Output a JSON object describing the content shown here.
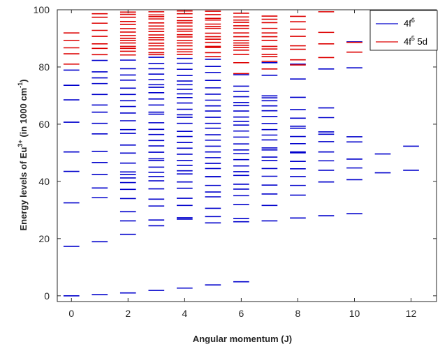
{
  "chart_data": {
    "type": "scatter",
    "xlabel": "Angular momentum (J)",
    "ylabel": {
      "prefix": "Energy levels of Eu",
      "sup1": "3+",
      "middle": " (in 1000 cm",
      "sup2": "-1",
      "suffix": ")"
    },
    "xlim": [
      -0.5,
      12.9
    ],
    "ylim": [
      -2,
      100
    ],
    "xticks": [
      0,
      2,
      4,
      6,
      8,
      10,
      12
    ],
    "yticks": [
      0,
      20,
      40,
      60,
      80,
      100
    ],
    "xtick_labels": [
      "0",
      "2",
      "4",
      "6",
      "8",
      "10",
      "12"
    ],
    "ytick_labels": [
      "0",
      "20",
      "40",
      "60",
      "80",
      "100"
    ],
    "grid": false,
    "legend": {
      "placement": "top-right",
      "entries": [
        {
          "base": "4f",
          "sup": "6",
          "tail": "",
          "color": "#0000cc"
        },
        {
          "base": "4f",
          "sup": "5",
          "tail": " 5d",
          "color": "#dd0000"
        }
      ]
    },
    "series": [
      {
        "name": "4f 6",
        "color": "#0000cc",
        "points": {
          "0": [
            0,
            17.3,
            32.5,
            43.5,
            50.3,
            60.7,
            68.5,
            73.6,
            78.9
          ],
          "1": [
            0.4,
            18.9,
            34.3,
            37.7,
            42.4,
            46.6,
            50.5,
            56.6,
            60.3,
            64.2,
            66.7,
            70.4,
            74.2,
            76.2,
            78.3,
            82.3
          ],
          "2": [
            1.0,
            21.5,
            26.2,
            29.4,
            34.0,
            37.2,
            39.6,
            41.2,
            42.4,
            43.3,
            46.4,
            49.9,
            52.7,
            56.8,
            58.1,
            61.2,
            63.9,
            66.2,
            68.2,
            70.4,
            72.6,
            75.4,
            77.2,
            79.4,
            82.4
          ],
          "3": [
            1.9,
            24.5,
            26.5,
            31.4,
            33.8,
            37.4,
            40.2,
            41.7,
            43.2,
            45.0,
            47.3,
            47.9,
            50.2,
            52.4,
            54.3,
            56.4,
            58.2,
            60.5,
            63.5,
            64.2,
            66.7,
            68.8,
            71.0,
            72.9,
            73.8,
            75.6,
            77.5,
            79.4,
            81.2,
            83.4
          ],
          "4": [
            2.7,
            26.8,
            27.3,
            31.6,
            34.1,
            37.6,
            39.8,
            42.6,
            43.7,
            45.6,
            47.3,
            49.5,
            51.6,
            53.6,
            55.7,
            57.5,
            60.3,
            62.4,
            63.3,
            65.2,
            67.4,
            69.3,
            70.6,
            72.2,
            73.8,
            75.1,
            77.0,
            79.2,
            81.3,
            83.0
          ],
          "5": [
            3.8,
            25.5,
            27.7,
            30.6,
            34.6,
            36.3,
            38.6,
            41.6,
            41.7,
            44.5,
            46.3,
            48.3,
            50.3,
            52.3,
            54.4,
            56.3,
            58.6,
            60.3,
            62.4,
            64.6,
            66.4,
            68.4,
            70.5,
            72.7,
            75.3,
            78.1,
            80.2,
            82.7
          ],
          "6": [
            4.9,
            25.9,
            27.0,
            31.9,
            35.0,
            37.3,
            39.0,
            42.1,
            43.4,
            45.4,
            47.6,
            49.7,
            51.0,
            53.1,
            55.5,
            57.6,
            59.7,
            61.0,
            62.5,
            64.6,
            66.5,
            67.6,
            69.6,
            71.5,
            73.3,
            77.3
          ],
          "7": [
            26.2,
            31.6,
            35.6,
            38.7,
            41.8,
            44.5,
            47.3,
            48.5,
            51.0,
            51.7,
            54.5,
            56.2,
            58.1,
            60.2,
            62.7,
            64.7,
            66.4,
            68.2,
            69.2,
            69.9,
            77.1,
            81.5
          ],
          "8": [
            27.2,
            35.2,
            38.6,
            41.7,
            44.4,
            47.0,
            50.0,
            50.3,
            53.2,
            55.7,
            58.6,
            59.3,
            62.1,
            65.1,
            69.4,
            75.8,
            81.0
          ],
          "9": [
            28.0,
            39.8,
            43.9,
            47.2,
            50.3,
            53.9,
            56.5,
            57.3,
            62.3,
            65.7,
            79.3
          ],
          "10": [
            28.7,
            40.6,
            44.7,
            47.8,
            53.8,
            55.6,
            79.7,
            88.8
          ],
          "11": [
            43.0,
            49.6
          ],
          "12": [
            43.9,
            52.3
          ]
        }
      },
      {
        "name": "4f 5 5d",
        "color": "#dd0000",
        "points": {
          "0": [
            81.0,
            84.6,
            86.7,
            89.2,
            91.9
          ],
          "1": [
            84.3,
            86.5,
            88.1,
            90.7,
            92.8,
            95.3,
            97.4,
            98.6
          ],
          "2": [
            84.2,
            85.5,
            86.5,
            87.2,
            88.4,
            89.3,
            90.0,
            91.0,
            92.2,
            93.4,
            94.9,
            95.9,
            97.4,
            98.4,
            99.2
          ],
          "3": [
            84.3,
            85.0,
            86.3,
            87.4,
            88.3,
            89.5,
            90.3,
            91.2,
            92.4,
            93.3,
            94.3,
            95.4,
            96.8,
            97.6,
            98.2,
            99.3
          ],
          "4": [
            84.4,
            85.3,
            86.2,
            87.4,
            88.4,
            89.2,
            90.5,
            91.3,
            92.5,
            93.2,
            94.3,
            95.4,
            96.2,
            97.3,
            98.6,
            99.6
          ],
          "5": [
            83.6,
            85.0,
            86.8,
            87.2,
            88.6,
            89.7,
            90.6,
            91.8,
            93.5,
            94.2,
            95.0,
            96.4,
            97.0,
            98.3,
            99.5
          ],
          "6": [
            77.7,
            81.5,
            84.4,
            85.9,
            86.8,
            87.6,
            88.4,
            89.2,
            90.6,
            91.9,
            93.5,
            94.4,
            95.6,
            96.4,
            97.5,
            98.8
          ],
          "7": [
            79.3,
            82.0,
            83.6,
            84.4,
            86.3,
            87.2,
            89.3,
            90.6,
            91.9,
            93.5,
            95.5,
            96.7,
            97.8
          ],
          "8": [
            80.7,
            82.5,
            86.2,
            87.4,
            90.7,
            93.2,
            95.8,
            97.7
          ],
          "9": [
            83.3,
            88.1,
            92.1,
            99.3
          ],
          "10": [
            85.2,
            88.6
          ]
        }
      }
    ]
  }
}
